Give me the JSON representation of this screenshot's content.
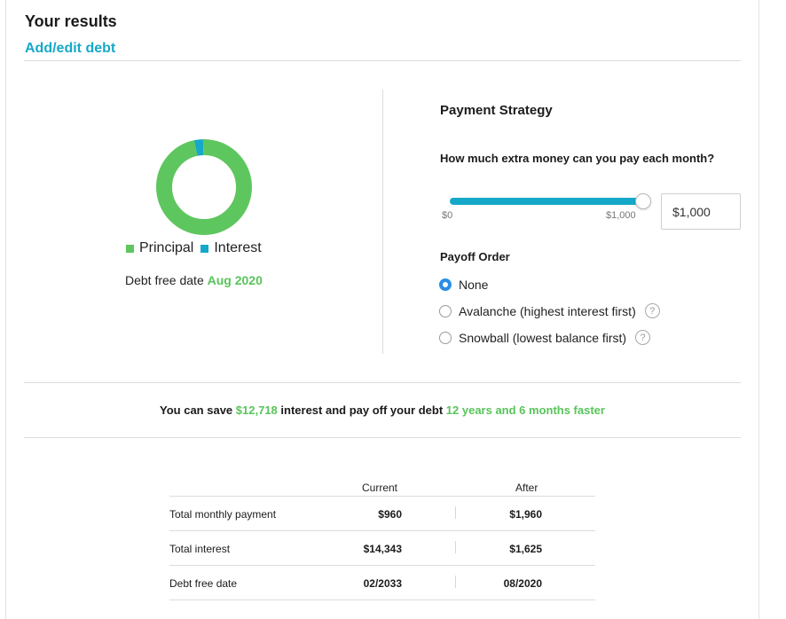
{
  "header": {
    "title": "Your results",
    "edit_link": "Add/edit debt"
  },
  "chart_data": {
    "type": "pie",
    "style": "donut",
    "series": [
      {
        "name": "Principal",
        "value": 0.97,
        "color": "#5ec65f"
      },
      {
        "name": "Interest",
        "value": 0.03,
        "color": "#16a8c8"
      }
    ]
  },
  "legend": {
    "principal": "Principal",
    "interest": "Interest"
  },
  "debt_free": {
    "label": "Debt free date",
    "value": "Aug 2020"
  },
  "strategy": {
    "title": "Payment Strategy",
    "question": "How much extra money can you pay each month?",
    "slider": {
      "min_label": "$0",
      "max_label": "$1,000",
      "level": 1.0
    },
    "input_value": "$1,000",
    "payoff_title": "Payoff Order",
    "options": [
      {
        "label": "None",
        "checked": true,
        "help": false
      },
      {
        "label": "Avalanche (highest interest first)",
        "checked": false,
        "help": true
      },
      {
        "label": "Snowball (lowest balance first)",
        "checked": false,
        "help": true
      }
    ],
    "help_glyph": "?"
  },
  "savings": {
    "prefix": "You can save",
    "amount": "$12,718",
    "middle": "interest and pay off your debt",
    "time": "12 years and 6 months faster"
  },
  "comparison": {
    "headers": {
      "current": "Current",
      "after": "After"
    },
    "rows": [
      {
        "label": "Total monthly payment",
        "current": "$960",
        "after": "$1,960"
      },
      {
        "label": "Total interest",
        "current": "$14,343",
        "after": "$1,625"
      },
      {
        "label": "Debt free date",
        "current": "02/2033",
        "after": "08/2020"
      }
    ]
  },
  "colors": {
    "accent": "#16a8c8",
    "green": "#58c45a",
    "radio_selected": "#2a8ee6"
  }
}
